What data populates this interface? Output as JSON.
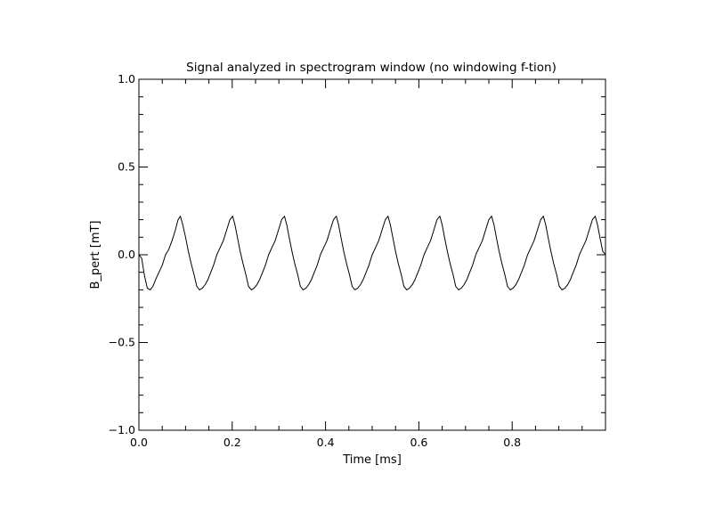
{
  "chart_data": {
    "type": "line",
    "title": "Signal analyzed in spectrogram window (no windowing f-tion)",
    "xlabel": "Time [ms]",
    "ylabel": "B_pert [mT]",
    "xlim": [
      0.0,
      1.0
    ],
    "ylim": [
      -1.0,
      1.0
    ],
    "x_ticks": [
      0.0,
      0.2,
      0.4,
      0.6,
      0.8
    ],
    "x_tick_labels": [
      "0.0",
      "0.2",
      "0.4",
      "0.6",
      "0.8"
    ],
    "y_ticks": [
      -1.0,
      -0.5,
      0.0,
      0.5,
      1.0
    ],
    "y_tick_labels": [
      "−1.0",
      "−0.5",
      "0.0",
      "0.5",
      "1.0"
    ],
    "grid": false,
    "line_color": "#000000",
    "series": [
      {
        "x": [
          0.0,
          0.006,
          0.012,
          0.018,
          0.024,
          0.03,
          0.036,
          0.043,
          0.05,
          0.057,
          0.064,
          0.071,
          0.078,
          0.084,
          0.089,
          0.094,
          0.1,
          0.106,
          0.112,
          0.118,
          0.124,
          0.13,
          0.136,
          0.142,
          0.148,
          0.154,
          0.16,
          0.167,
          0.174,
          0.181,
          0.188,
          0.195,
          0.201,
          0.206,
          0.211,
          0.217,
          0.223,
          0.229,
          0.235,
          0.241,
          0.247,
          0.253,
          0.259,
          0.265,
          0.271,
          0.278,
          0.285,
          0.292,
          0.299,
          0.306,
          0.312,
          0.317,
          0.322,
          0.328,
          0.334,
          0.34,
          0.346,
          0.352,
          0.358,
          0.364,
          0.37,
          0.376,
          0.382,
          0.389,
          0.396,
          0.403,
          0.41,
          0.417,
          0.423,
          0.428,
          0.433,
          0.439,
          0.445,
          0.451,
          0.457,
          0.463,
          0.469,
          0.475,
          0.481,
          0.487,
          0.493,
          0.5,
          0.507,
          0.514,
          0.521,
          0.528,
          0.534,
          0.539,
          0.544,
          0.55,
          0.556,
          0.562,
          0.568,
          0.574,
          0.58,
          0.586,
          0.592,
          0.598,
          0.604,
          0.611,
          0.618,
          0.625,
          0.632,
          0.639,
          0.645,
          0.65,
          0.655,
          0.661,
          0.667,
          0.673,
          0.679,
          0.685,
          0.691,
          0.697,
          0.703,
          0.709,
          0.715,
          0.722,
          0.729,
          0.736,
          0.743,
          0.75,
          0.756,
          0.761,
          0.766,
          0.772,
          0.778,
          0.784,
          0.79,
          0.796,
          0.802,
          0.808,
          0.814,
          0.82,
          0.826,
          0.833,
          0.84,
          0.847,
          0.854,
          0.861,
          0.867,
          0.872,
          0.877,
          0.883,
          0.889,
          0.895,
          0.901,
          0.907,
          0.913,
          0.919,
          0.925,
          0.931,
          0.937,
          0.944,
          0.951,
          0.958,
          0.965,
          0.972,
          0.978,
          0.983,
          0.988,
          0.994,
          1.0
        ],
        "y": [
          0.0,
          -0.02,
          -0.12,
          -0.19,
          -0.2,
          -0.18,
          -0.14,
          -0.1,
          -0.06,
          0.0,
          0.03,
          0.08,
          0.14,
          0.2,
          0.22,
          0.17,
          0.1,
          0.02,
          -0.05,
          -0.11,
          -0.18,
          -0.2,
          -0.19,
          -0.17,
          -0.14,
          -0.1,
          -0.06,
          0.0,
          0.04,
          0.08,
          0.14,
          0.2,
          0.22,
          0.17,
          0.1,
          0.02,
          -0.05,
          -0.11,
          -0.18,
          -0.2,
          -0.19,
          -0.17,
          -0.14,
          -0.1,
          -0.06,
          0.0,
          0.04,
          0.08,
          0.14,
          0.2,
          0.22,
          0.17,
          0.1,
          0.02,
          -0.05,
          -0.11,
          -0.18,
          -0.2,
          -0.19,
          -0.17,
          -0.14,
          -0.1,
          -0.06,
          0.0,
          0.04,
          0.08,
          0.14,
          0.2,
          0.22,
          0.17,
          0.1,
          0.02,
          -0.05,
          -0.11,
          -0.18,
          -0.2,
          -0.19,
          -0.17,
          -0.14,
          -0.1,
          -0.06,
          0.0,
          0.04,
          0.08,
          0.14,
          0.2,
          0.22,
          0.17,
          0.1,
          0.02,
          -0.05,
          -0.11,
          -0.18,
          -0.2,
          -0.19,
          -0.17,
          -0.14,
          -0.1,
          -0.06,
          0.0,
          0.04,
          0.08,
          0.14,
          0.2,
          0.22,
          0.17,
          0.1,
          0.02,
          -0.05,
          -0.11,
          -0.18,
          -0.2,
          -0.19,
          -0.17,
          -0.14,
          -0.1,
          -0.06,
          0.0,
          0.04,
          0.08,
          0.14,
          0.2,
          0.22,
          0.17,
          0.1,
          0.02,
          -0.05,
          -0.11,
          -0.18,
          -0.2,
          -0.19,
          -0.17,
          -0.14,
          -0.1,
          -0.06,
          0.0,
          0.04,
          0.08,
          0.14,
          0.2,
          0.22,
          0.17,
          0.1,
          0.02,
          -0.05,
          -0.11,
          -0.18,
          -0.2,
          -0.19,
          -0.17,
          -0.14,
          -0.1,
          -0.06,
          0.0,
          0.04,
          0.08,
          0.14,
          0.2,
          0.22,
          0.17,
          0.1,
          0.02,
          0.0
        ]
      }
    ]
  }
}
